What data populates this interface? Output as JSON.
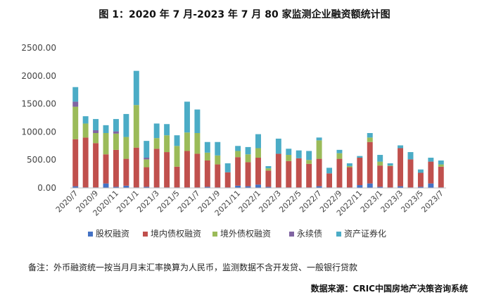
{
  "chart_data": {
    "type": "bar",
    "stacked": true,
    "title": "图 1：2020 年 7 月-2023 年 7 月 80 家监测企业融资额统计图",
    "ylim": [
      0,
      2500
    ],
    "yticks": [
      "0.00",
      "500.00",
      "1000.00",
      "1500.00",
      "2000.00",
      "2500.00"
    ],
    "categories": [
      "2020/7",
      "2020/8",
      "2020/9",
      "2020/10",
      "2020/11",
      "2020/12",
      "2021/1",
      "2021/2",
      "2021/3",
      "2021/4",
      "2021/5",
      "2021/6",
      "2021/7",
      "2021/8",
      "2021/9",
      "2021/10",
      "2021/11",
      "2021/12",
      "2022/1",
      "2022/2",
      "2022/3",
      "2022/4",
      "2022/5",
      "2022/6",
      "2022/7",
      "2022/8",
      "2022/9",
      "2022/10",
      "2022/11",
      "2022/12",
      "2023/1",
      "2023/2",
      "2023/3",
      "2023/4",
      "2023/5",
      "2023/6",
      "2023/7"
    ],
    "xtick_labels": [
      "2020/7",
      "2020/9",
      "2020/11",
      "2021/1",
      "2021/3",
      "2021/5",
      "2021/7",
      "2021/9",
      "2021/11",
      "2022/1",
      "2022/3",
      "2022/5",
      "2022/7",
      "2022/9",
      "2022/11",
      "2023/1",
      "2023/3",
      "2023/5",
      "2023/7"
    ],
    "grid": false,
    "legend_position": "bottom",
    "series": [
      {
        "name": "股权融资",
        "color": "#4472c4",
        "values": [
          30,
          10,
          10,
          80,
          20,
          40,
          10,
          20,
          10,
          10,
          10,
          10,
          10,
          20,
          10,
          10,
          40,
          30,
          60,
          20,
          10,
          10,
          10,
          10,
          30,
          10,
          10,
          10,
          50,
          80,
          20,
          10,
          30,
          10,
          20,
          80,
          10
        ]
      },
      {
        "name": "境内债权融资",
        "color": "#c0504d",
        "values": [
          840,
          890,
          790,
          520,
          660,
          480,
          710,
          350,
          690,
          630,
          370,
          650,
          600,
          470,
          410,
          270,
          510,
          430,
          480,
          290,
          600,
          470,
          520,
          420,
          490,
          250,
          510,
          360,
          490,
          740,
          380,
          380,
          680,
          500,
          250,
          390,
          370
        ]
      },
      {
        "name": "境外债权融资",
        "color": "#9bbb59",
        "values": [
          580,
          250,
          180,
          380,
          290,
          390,
          760,
          140,
          190,
          300,
          370,
          330,
          370,
          140,
          160,
          0,
          110,
          140,
          170,
          40,
          0,
          110,
          0,
          70,
          330,
          0,
          100,
          20,
          0,
          80,
          70,
          10,
          0,
          0,
          0,
          0,
          40
        ]
      },
      {
        "name": "永续债",
        "color": "#8064a2",
        "values": [
          90,
          0,
          50,
          0,
          40,
          0,
          0,
          30,
          0,
          0,
          0,
          0,
          0,
          0,
          0,
          0,
          0,
          0,
          0,
          0,
          0,
          0,
          0,
          0,
          0,
          0,
          0,
          0,
          0,
          0,
          0,
          0,
          0,
          0,
          0,
          0,
          0
        ]
      },
      {
        "name": "资产证券化",
        "color": "#4bacc6",
        "values": [
          260,
          130,
          200,
          140,
          220,
          410,
          610,
          300,
          260,
          200,
          190,
          550,
          420,
          190,
          240,
          160,
          90,
          130,
          250,
          40,
          270,
          110,
          140,
          160,
          50,
          100,
          60,
          50,
          30,
          80,
          120,
          40,
          50,
          130,
          60,
          70,
          70
        ]
      }
    ],
    "note": "备注：外币融资统一按当月月末汇率换算为人民币，监测数据不含开发贷、一般银行贷款",
    "source": "数据来源：CRIC中国房地产决策咨询系统"
  }
}
